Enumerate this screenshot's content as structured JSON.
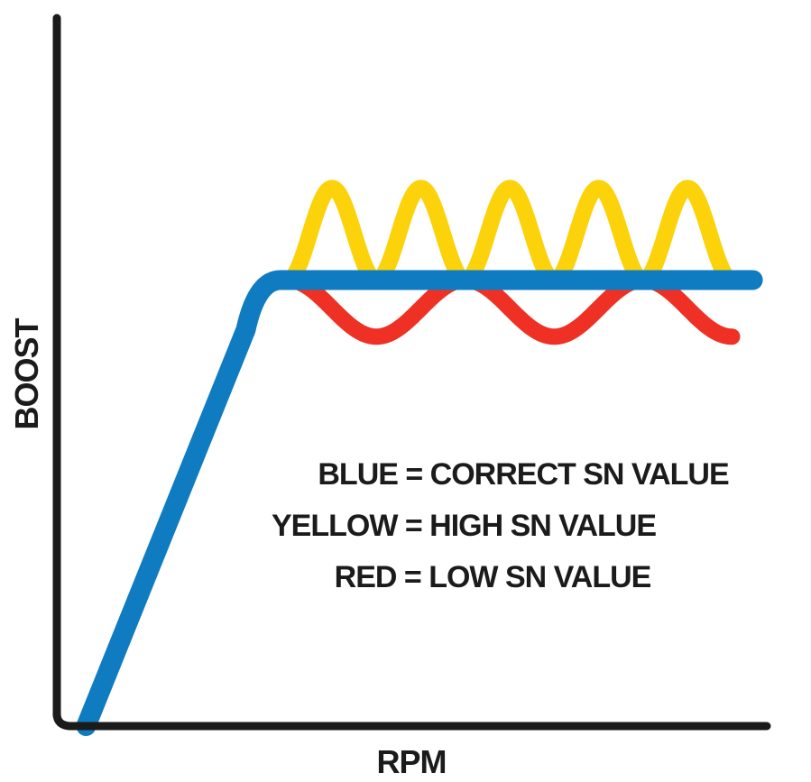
{
  "chart_data": {
    "type": "line",
    "title": "",
    "xlabel": "RPM",
    "ylabel": "BOOST",
    "xlim": [
      0,
      100
    ],
    "ylim": [
      0,
      100
    ],
    "grid": false,
    "legend_position": "center-right",
    "annotations": [
      "BLUE = CORRECT SN VALUE",
      "YELLOW = HIGH SN VALUE",
      "RED = LOW SN VALUE"
    ],
    "series": [
      {
        "color": "#fcd20a",
        "kind": "high-oscillation",
        "values": {
          "base": 63,
          "amplitude": 13,
          "start": 31,
          "end": 95,
          "cycles": 5
        }
      },
      {
        "color": "#ee3124",
        "kind": "low-oscillation",
        "values": {
          "base": 63,
          "amplitude": 8,
          "start": 31,
          "end": 95,
          "cycles": 2.5
        }
      },
      {
        "color": "#0f7bc0",
        "kind": "correct",
        "points": [
          [
            2,
            0
          ],
          [
            25,
            56
          ],
          [
            30,
            63
          ],
          [
            98,
            63
          ]
        ]
      }
    ]
  },
  "colors": {
    "axis": "#1b1b1b",
    "blue": "#0f7bc0",
    "yellow": "#fcd20a",
    "red": "#ee3124"
  }
}
